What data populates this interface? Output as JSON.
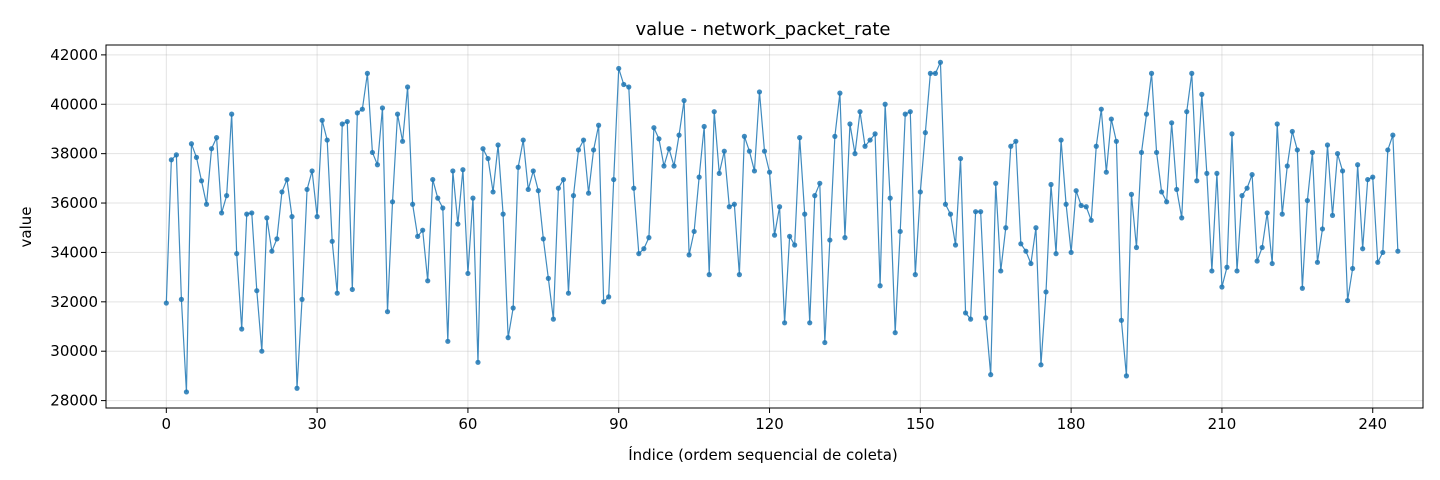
{
  "chart_data": {
    "type": "line",
    "title": "value - network_packet_rate",
    "xlabel": "Índice (ordem sequencial de coleta)",
    "ylabel": "value",
    "xlim": [
      -12,
      250
    ],
    "ylim": [
      27700,
      42400
    ],
    "xticks": [
      0,
      30,
      60,
      90,
      120,
      150,
      180,
      210,
      240
    ],
    "yticks": [
      28000,
      30000,
      32000,
      34000,
      36000,
      38000,
      40000,
      42000
    ],
    "grid": true,
    "series_color": "#1f77b4",
    "series": [
      {
        "x": [
          0,
          1,
          2,
          3,
          4,
          5,
          6,
          7,
          8,
          9,
          10,
          11,
          12,
          13,
          14,
          15,
          16,
          17,
          18,
          19,
          20,
          21,
          22,
          23,
          24,
          25,
          26,
          27,
          28,
          29,
          30,
          31,
          32,
          33,
          34,
          35,
          36,
          37,
          38,
          39,
          40,
          41,
          42,
          43,
          44,
          45,
          46,
          47,
          48,
          49,
          50,
          51,
          52,
          53,
          54,
          55,
          56,
          57,
          58,
          59,
          60,
          61,
          62,
          63,
          64,
          65,
          66,
          67,
          68,
          69,
          70,
          71,
          72,
          73,
          74,
          75,
          76,
          77,
          78,
          79,
          80,
          81,
          82,
          83,
          84,
          85,
          86,
          87,
          88,
          89,
          90,
          91,
          92,
          93,
          94,
          95,
          96,
          97,
          98,
          99,
          100,
          101,
          102,
          103,
          104,
          105,
          106,
          107,
          108,
          109,
          110,
          111,
          112,
          113,
          114,
          115,
          116,
          117,
          118,
          119,
          120,
          121,
          122,
          123,
          124,
          125,
          126,
          127,
          128,
          129,
          130,
          131,
          132,
          133,
          134,
          135,
          136,
          137,
          138,
          139,
          140,
          141,
          142,
          143,
          144,
          145,
          146,
          147,
          148,
          149,
          150,
          151,
          152,
          153,
          154,
          155,
          156,
          157,
          158,
          159,
          160,
          161,
          162,
          163,
          164,
          165,
          166,
          167,
          168,
          169,
          170,
          171,
          172,
          173,
          174,
          175,
          176,
          177,
          178,
          179,
          180,
          181,
          182,
          183,
          184,
          185,
          186,
          187,
          188,
          189,
          190,
          191,
          192,
          193,
          194,
          195,
          196,
          197,
          198,
          199,
          200,
          201,
          202,
          203,
          204,
          205,
          206,
          207,
          208,
          209,
          210,
          211,
          212,
          213,
          214,
          215,
          216,
          217,
          218,
          219,
          220,
          221,
          222,
          223,
          224,
          225,
          226,
          227,
          228,
          229,
          230,
          231,
          232,
          233,
          234,
          235,
          236,
          237,
          238,
          239,
          240,
          241,
          242,
          243,
          244,
          245
        ],
        "y": [
          31950,
          37750,
          37950,
          32100,
          28350,
          38400,
          37850,
          36900,
          35950,
          38200,
          38650,
          35600,
          36300,
          39600,
          33950,
          30900,
          35550,
          35600,
          32450,
          30000,
          35400,
          34050,
          34550,
          36450,
          36950,
          35450,
          28500,
          32100,
          36550,
          37300,
          35450,
          39350,
          38550,
          34450,
          32350,
          39200,
          39300,
          32500,
          39650,
          39800,
          41250,
          38050,
          37550,
          39850,
          31600,
          36050,
          39600,
          38500,
          40700,
          35950,
          34650,
          34900,
          32850,
          36950,
          36200,
          35800,
          30400,
          37300,
          35150,
          37350,
          33150,
          36200,
          29550,
          38200,
          37800,
          36450,
          38350,
          35550,
          30550,
          31750,
          37450,
          38550,
          36550,
          37300,
          36500,
          34550,
          32950,
          31300,
          36600,
          36950,
          32350,
          36300,
          38150,
          38550,
          36400,
          38150,
          39150,
          32000,
          32200,
          36950,
          41450,
          40800,
          40700,
          36600,
          33950,
          34150,
          34600,
          39050,
          38600,
          37500,
          38200,
          37500,
          38750,
          40150,
          33900,
          34850,
          37050,
          39100,
          33100,
          39700,
          37200,
          38100,
          35850,
          35950,
          33100,
          38700,
          38100,
          37300,
          40500,
          38100,
          37250,
          34700,
          35850,
          31150,
          34650,
          34300,
          38650,
          35550,
          31150,
          36300,
          36800,
          30350,
          34500,
          38700,
          40450,
          34600,
          39200,
          38000,
          39700,
          38300,
          38550,
          38800,
          32650,
          40000,
          36200,
          30750,
          34850,
          39600,
          39700,
          33100,
          36450,
          38850,
          41250,
          41250,
          41700,
          35950,
          35550,
          34300,
          37800,
          31550,
          31300,
          35650,
          35650,
          31350,
          29050,
          36800,
          33250,
          35000,
          38300,
          38500,
          34350,
          34050,
          33550,
          35000,
          29450,
          32400,
          36750,
          33950,
          38550,
          35950,
          34000,
          36500,
          35900,
          35850,
          35300,
          38300,
          39800,
          37250,
          39400,
          38500,
          31250,
          29000,
          36350,
          34200,
          38050,
          39600,
          41250,
          38050,
          36450,
          36050,
          39250,
          36550,
          35400,
          39700,
          41250,
          36900,
          40400,
          37200,
          33250,
          37200,
          32600,
          33400,
          38800,
          33250,
          36300,
          36600,
          37150,
          33650,
          34200,
          35600,
          33550,
          39200,
          35550,
          37500,
          38900,
          38150,
          32550,
          36100,
          38050,
          33600,
          34950,
          38350,
          35500,
          38000,
          37300,
          32050,
          33350,
          37550,
          34150,
          36950,
          37050,
          33600,
          34000,
          38150,
          38750,
          34050
        ]
      }
    ]
  }
}
